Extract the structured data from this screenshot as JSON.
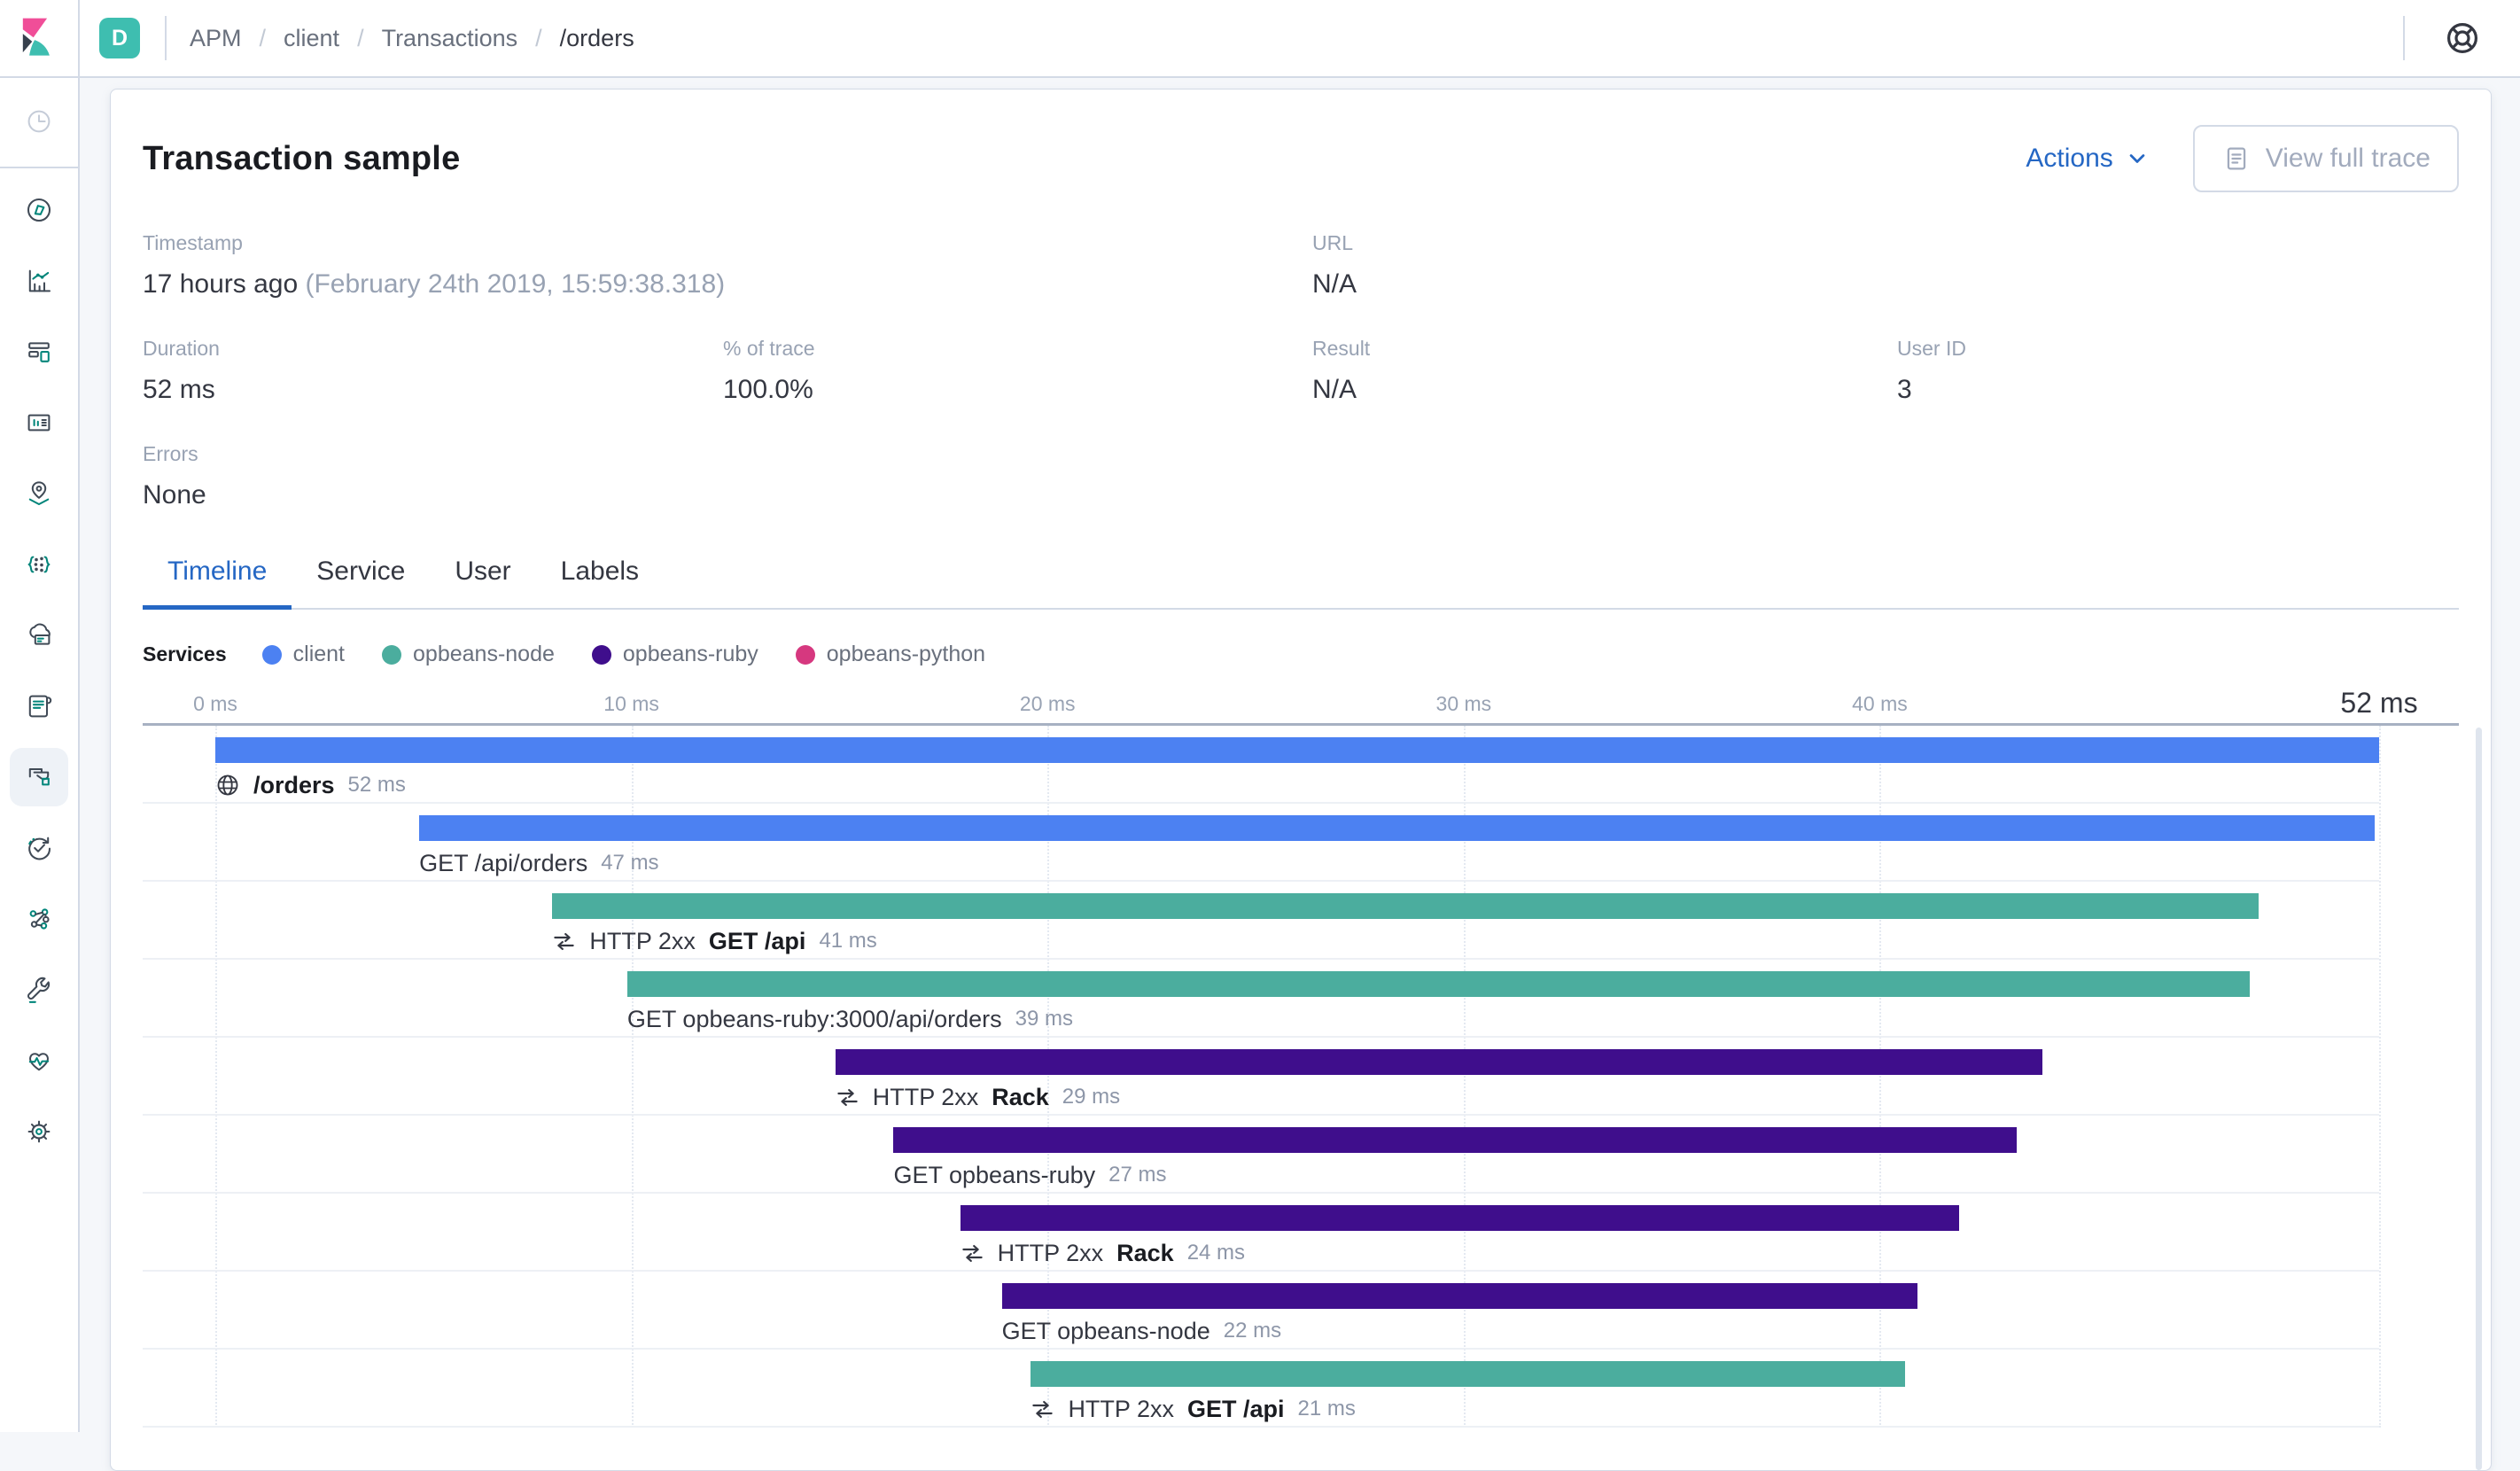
{
  "topbar": {
    "space_badge": "D",
    "breadcrumbs": [
      "APM",
      "client",
      "Transactions",
      "/orders"
    ]
  },
  "sidebar": {
    "icons": [
      "recently-viewed",
      "discover",
      "visualize",
      "dashboard",
      "canvas",
      "maps",
      "machine-learning",
      "infrastructure",
      "logs",
      "apm",
      "uptime",
      "graph",
      "dev-tools",
      "monitoring",
      "management"
    ],
    "active": "apm"
  },
  "header": {
    "title": "Transaction sample",
    "actions_label": "Actions",
    "view_full_trace_label": "View full trace"
  },
  "meta": {
    "timestamp": {
      "label": "Timestamp",
      "value": "17 hours ago",
      "secondary": " (February 24th 2019, 15:59:38.318)"
    },
    "url": {
      "label": "URL",
      "value": "N/A"
    },
    "duration": {
      "label": "Duration",
      "value": "52 ms"
    },
    "pct_of_trace": {
      "label": "% of trace",
      "value": "100.0%"
    },
    "result": {
      "label": "Result",
      "value": "N/A"
    },
    "user_id": {
      "label": "User ID",
      "value": "3"
    },
    "errors": {
      "label": "Errors",
      "value": "None"
    }
  },
  "tabs": [
    {
      "label": "Timeline",
      "active": true
    },
    {
      "label": "Service",
      "active": false
    },
    {
      "label": "User",
      "active": false
    },
    {
      "label": "Labels",
      "active": false
    }
  ],
  "legend": {
    "title": "Services",
    "services": [
      {
        "name": "client",
        "color": "#4c81f2"
      },
      {
        "name": "opbeans-node",
        "color": "#4bad9e"
      },
      {
        "name": "opbeans-ruby",
        "color": "#3f0e8c"
      },
      {
        "name": "opbeans-python",
        "color": "#d6387f"
      }
    ]
  },
  "chart_data": {
    "type": "waterfall-timeline",
    "unit": "ms",
    "max_ms": 52,
    "total_label": "52 ms",
    "axis_ticks": [
      {
        "label": "0 ms",
        "ms": 0
      },
      {
        "label": "10 ms",
        "ms": 10
      },
      {
        "label": "20 ms",
        "ms": 20
      },
      {
        "label": "30 ms",
        "ms": 30
      },
      {
        "label": "40 ms",
        "ms": 40
      }
    ],
    "gridline_ms": [
      0,
      10,
      20,
      30,
      40,
      52
    ],
    "rows": [
      {
        "kind": "transaction",
        "icon": "globe-icon",
        "name": "/orders",
        "duration_label": "52 ms",
        "start_ms": 0,
        "duration_ms": 52,
        "service": "client"
      },
      {
        "kind": "span",
        "name": "GET /api/orders",
        "duration_label": "47 ms",
        "start_ms": 4.9,
        "duration_ms": 47,
        "service": "client"
      },
      {
        "kind": "transaction",
        "icon": "merge-icon",
        "prefix": "HTTP 2xx",
        "name": "GET /api",
        "duration_label": "41 ms",
        "start_ms": 8.1,
        "duration_ms": 41,
        "service": "opbeans-node"
      },
      {
        "kind": "span",
        "name": "GET opbeans-ruby:3000/api/orders",
        "duration_label": "39 ms",
        "start_ms": 9.9,
        "duration_ms": 39,
        "service": "opbeans-node"
      },
      {
        "kind": "transaction",
        "icon": "merge-icon",
        "prefix": "HTTP 2xx",
        "name": "Rack",
        "duration_label": "29 ms",
        "start_ms": 14.9,
        "duration_ms": 29,
        "service": "opbeans-ruby"
      },
      {
        "kind": "span",
        "name": "GET opbeans-ruby",
        "duration_label": "27 ms",
        "start_ms": 16.3,
        "duration_ms": 27,
        "service": "opbeans-ruby"
      },
      {
        "kind": "transaction",
        "icon": "merge-icon",
        "prefix": "HTTP 2xx",
        "name": "Rack",
        "duration_label": "24 ms",
        "start_ms": 17.9,
        "duration_ms": 24,
        "service": "opbeans-ruby"
      },
      {
        "kind": "span",
        "name": "GET opbeans-node",
        "duration_label": "22 ms",
        "start_ms": 18.9,
        "duration_ms": 22,
        "service": "opbeans-ruby"
      },
      {
        "kind": "transaction",
        "icon": "merge-icon",
        "prefix": "HTTP 2xx",
        "name": "GET /api",
        "duration_label": "21 ms",
        "start_ms": 19.6,
        "duration_ms": 21,
        "service": "opbeans-node"
      }
    ]
  }
}
